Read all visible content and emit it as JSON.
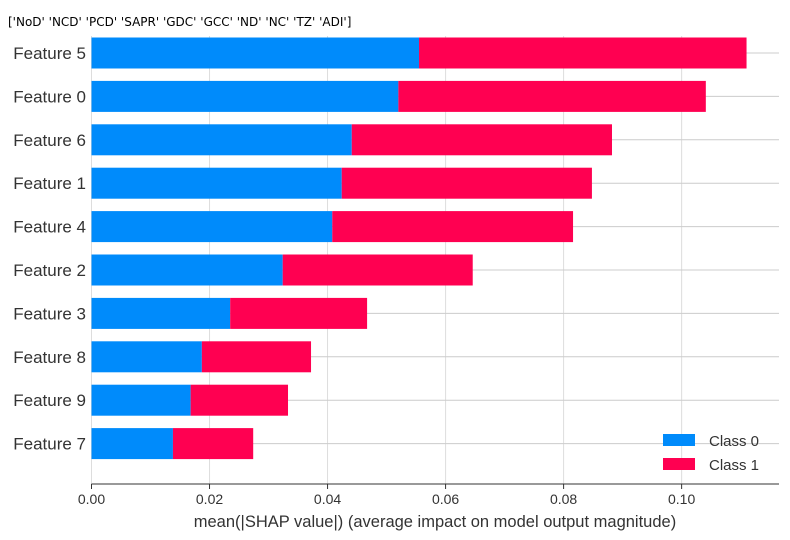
{
  "chart_data": {
    "type": "bar",
    "stacked": true,
    "orientation": "horizontal",
    "title": "['NoD' 'NCD' 'PCD' 'SAPR' 'GDC' 'GCC' 'ND' 'NC' 'TZ' 'ADI']",
    "xlabel": "mean(|SHAP value|) (average impact on model output magnitude)",
    "ylabel": "",
    "xlim": [
      0,
      0.1165
    ],
    "xticks": [
      "0.00",
      "0.02",
      "0.04",
      "0.06",
      "0.08",
      "0.10"
    ],
    "xtick_values": [
      0,
      0.02,
      0.04,
      0.06,
      0.08,
      0.1
    ],
    "grid": "horizontal and vertical",
    "legend_position": "bottom-right",
    "categories": [
      "Feature 5",
      "Feature 0",
      "Feature 6",
      "Feature 1",
      "Feature 4",
      "Feature 2",
      "Feature 3",
      "Feature 8",
      "Feature 9",
      "Feature 7"
    ],
    "series": [
      {
        "name": "Class 0",
        "color": "#008bfb",
        "values": [
          0.0555,
          0.052,
          0.0441,
          0.0424,
          0.0408,
          0.0324,
          0.0235,
          0.0187,
          0.0168,
          0.0138
        ]
      },
      {
        "name": "Class 1",
        "color": "#ff0051",
        "values": [
          0.0555,
          0.0521,
          0.0441,
          0.0424,
          0.0408,
          0.0322,
          0.0232,
          0.0185,
          0.0165,
          0.0136
        ]
      }
    ]
  }
}
